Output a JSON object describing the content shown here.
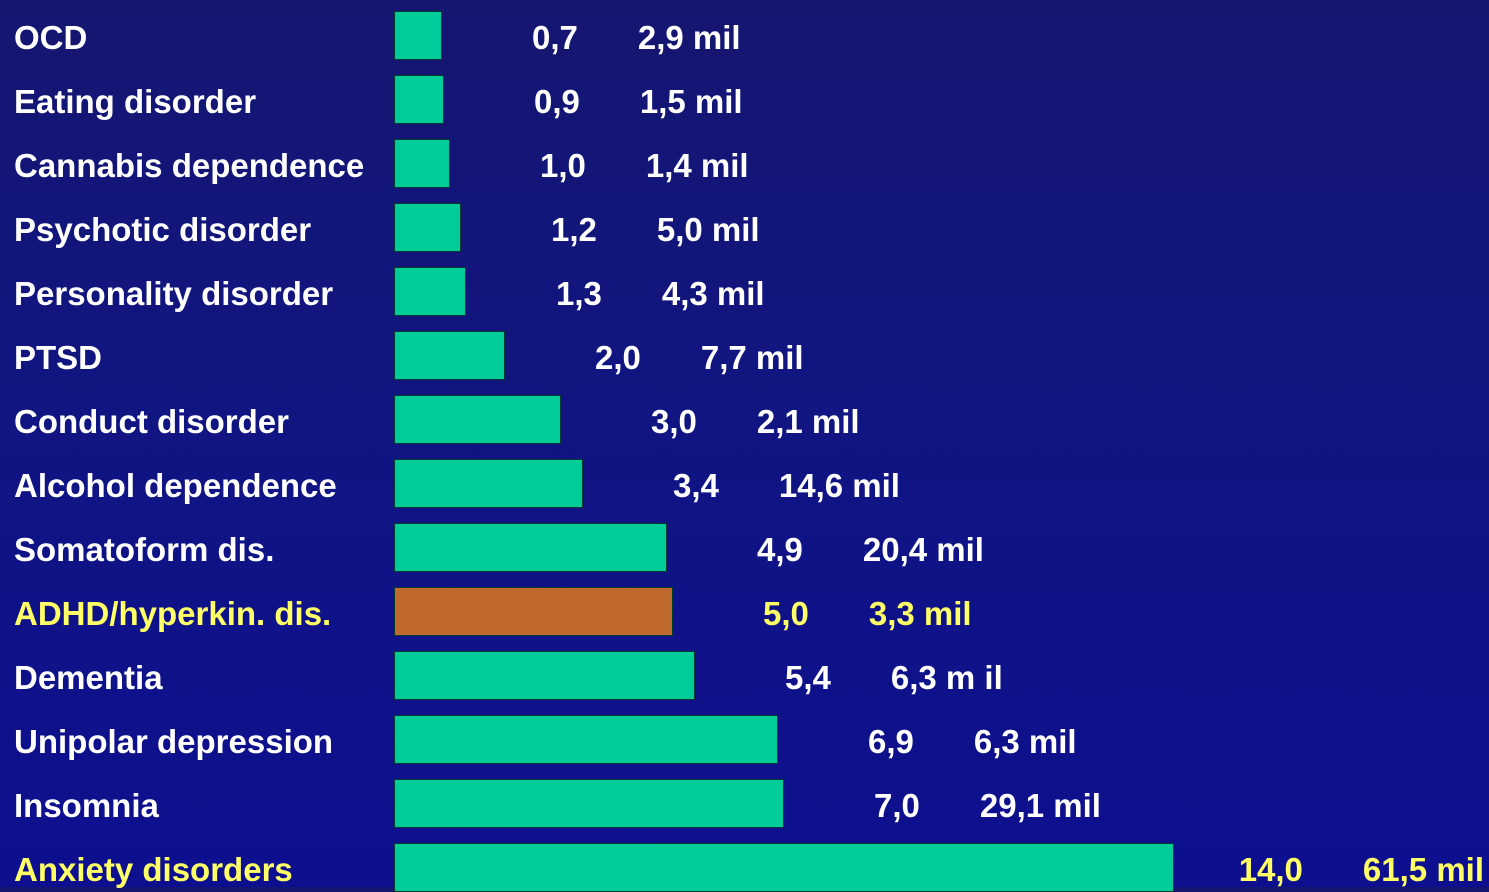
{
  "chart_data": {
    "type": "bar",
    "orientation": "horizontal",
    "colors": {
      "background": "#111581",
      "bar_default": "#00cc99",
      "bar_highlight": "#c0692f",
      "text_default": "#ffffff",
      "text_highlight": "#ffff66"
    },
    "rows": [
      {
        "category": "OCD",
        "value": 0.7,
        "value_label": "0,7",
        "count_label": "2,9 mil",
        "highlight_label": false,
        "highlight_bar": false
      },
      {
        "category": "Eating disorder",
        "value": 0.9,
        "value_label": "0,9",
        "count_label": "1,5 mil",
        "highlight_label": false,
        "highlight_bar": false
      },
      {
        "category": "Cannabis dependence",
        "value": 1.0,
        "value_label": "1,0",
        "count_label": "1,4 mil",
        "highlight_label": false,
        "highlight_bar": false
      },
      {
        "category": "Psychotic disorder",
        "value": 1.2,
        "value_label": "1,2",
        "count_label": "5,0 mil",
        "highlight_label": false,
        "highlight_bar": false
      },
      {
        "category": "Personality disorder",
        "value": 1.3,
        "value_label": "1,3",
        "count_label": "4,3 mil",
        "highlight_label": false,
        "highlight_bar": false
      },
      {
        "category": "PTSD",
        "value": 2.0,
        "value_label": "2,0",
        "count_label": "7,7 mil",
        "highlight_label": false,
        "highlight_bar": false
      },
      {
        "category": "Conduct disorder",
        "value": 3.0,
        "value_label": "3,0",
        "count_label": "2,1 mil",
        "highlight_label": false,
        "highlight_bar": false
      },
      {
        "category": "Alcohol dependence",
        "value": 3.4,
        "value_label": "3,4",
        "count_label": "14,6 mil",
        "highlight_label": false,
        "highlight_bar": false
      },
      {
        "category": "Somatoform dis.",
        "value": 4.9,
        "value_label": "4,9",
        "count_label": "20,4 mil",
        "highlight_label": false,
        "highlight_bar": false
      },
      {
        "category": "ADHD/hyperkin. dis.",
        "value": 5.0,
        "value_label": "5,0",
        "count_label": "3,3 mil",
        "highlight_label": true,
        "highlight_bar": true
      },
      {
        "category": "Dementia",
        "value": 5.4,
        "value_label": "5,4",
        "count_label": "6,3 m il",
        "highlight_label": false,
        "highlight_bar": false
      },
      {
        "category": "Unipolar depression",
        "value": 6.9,
        "value_label": "6,9",
        "count_label": "6,3 mil",
        "highlight_label": false,
        "highlight_bar": false
      },
      {
        "category": "Insomnia",
        "value": 7.0,
        "value_label": "7,0",
        "count_label": "29,1 mil",
        "highlight_label": false,
        "highlight_bar": false
      },
      {
        "category": "Anxiety disorders",
        "value": 14.0,
        "value_label": "14,0",
        "count_label": "61,5 mil",
        "highlight_label": true,
        "highlight_bar": false
      }
    ]
  }
}
